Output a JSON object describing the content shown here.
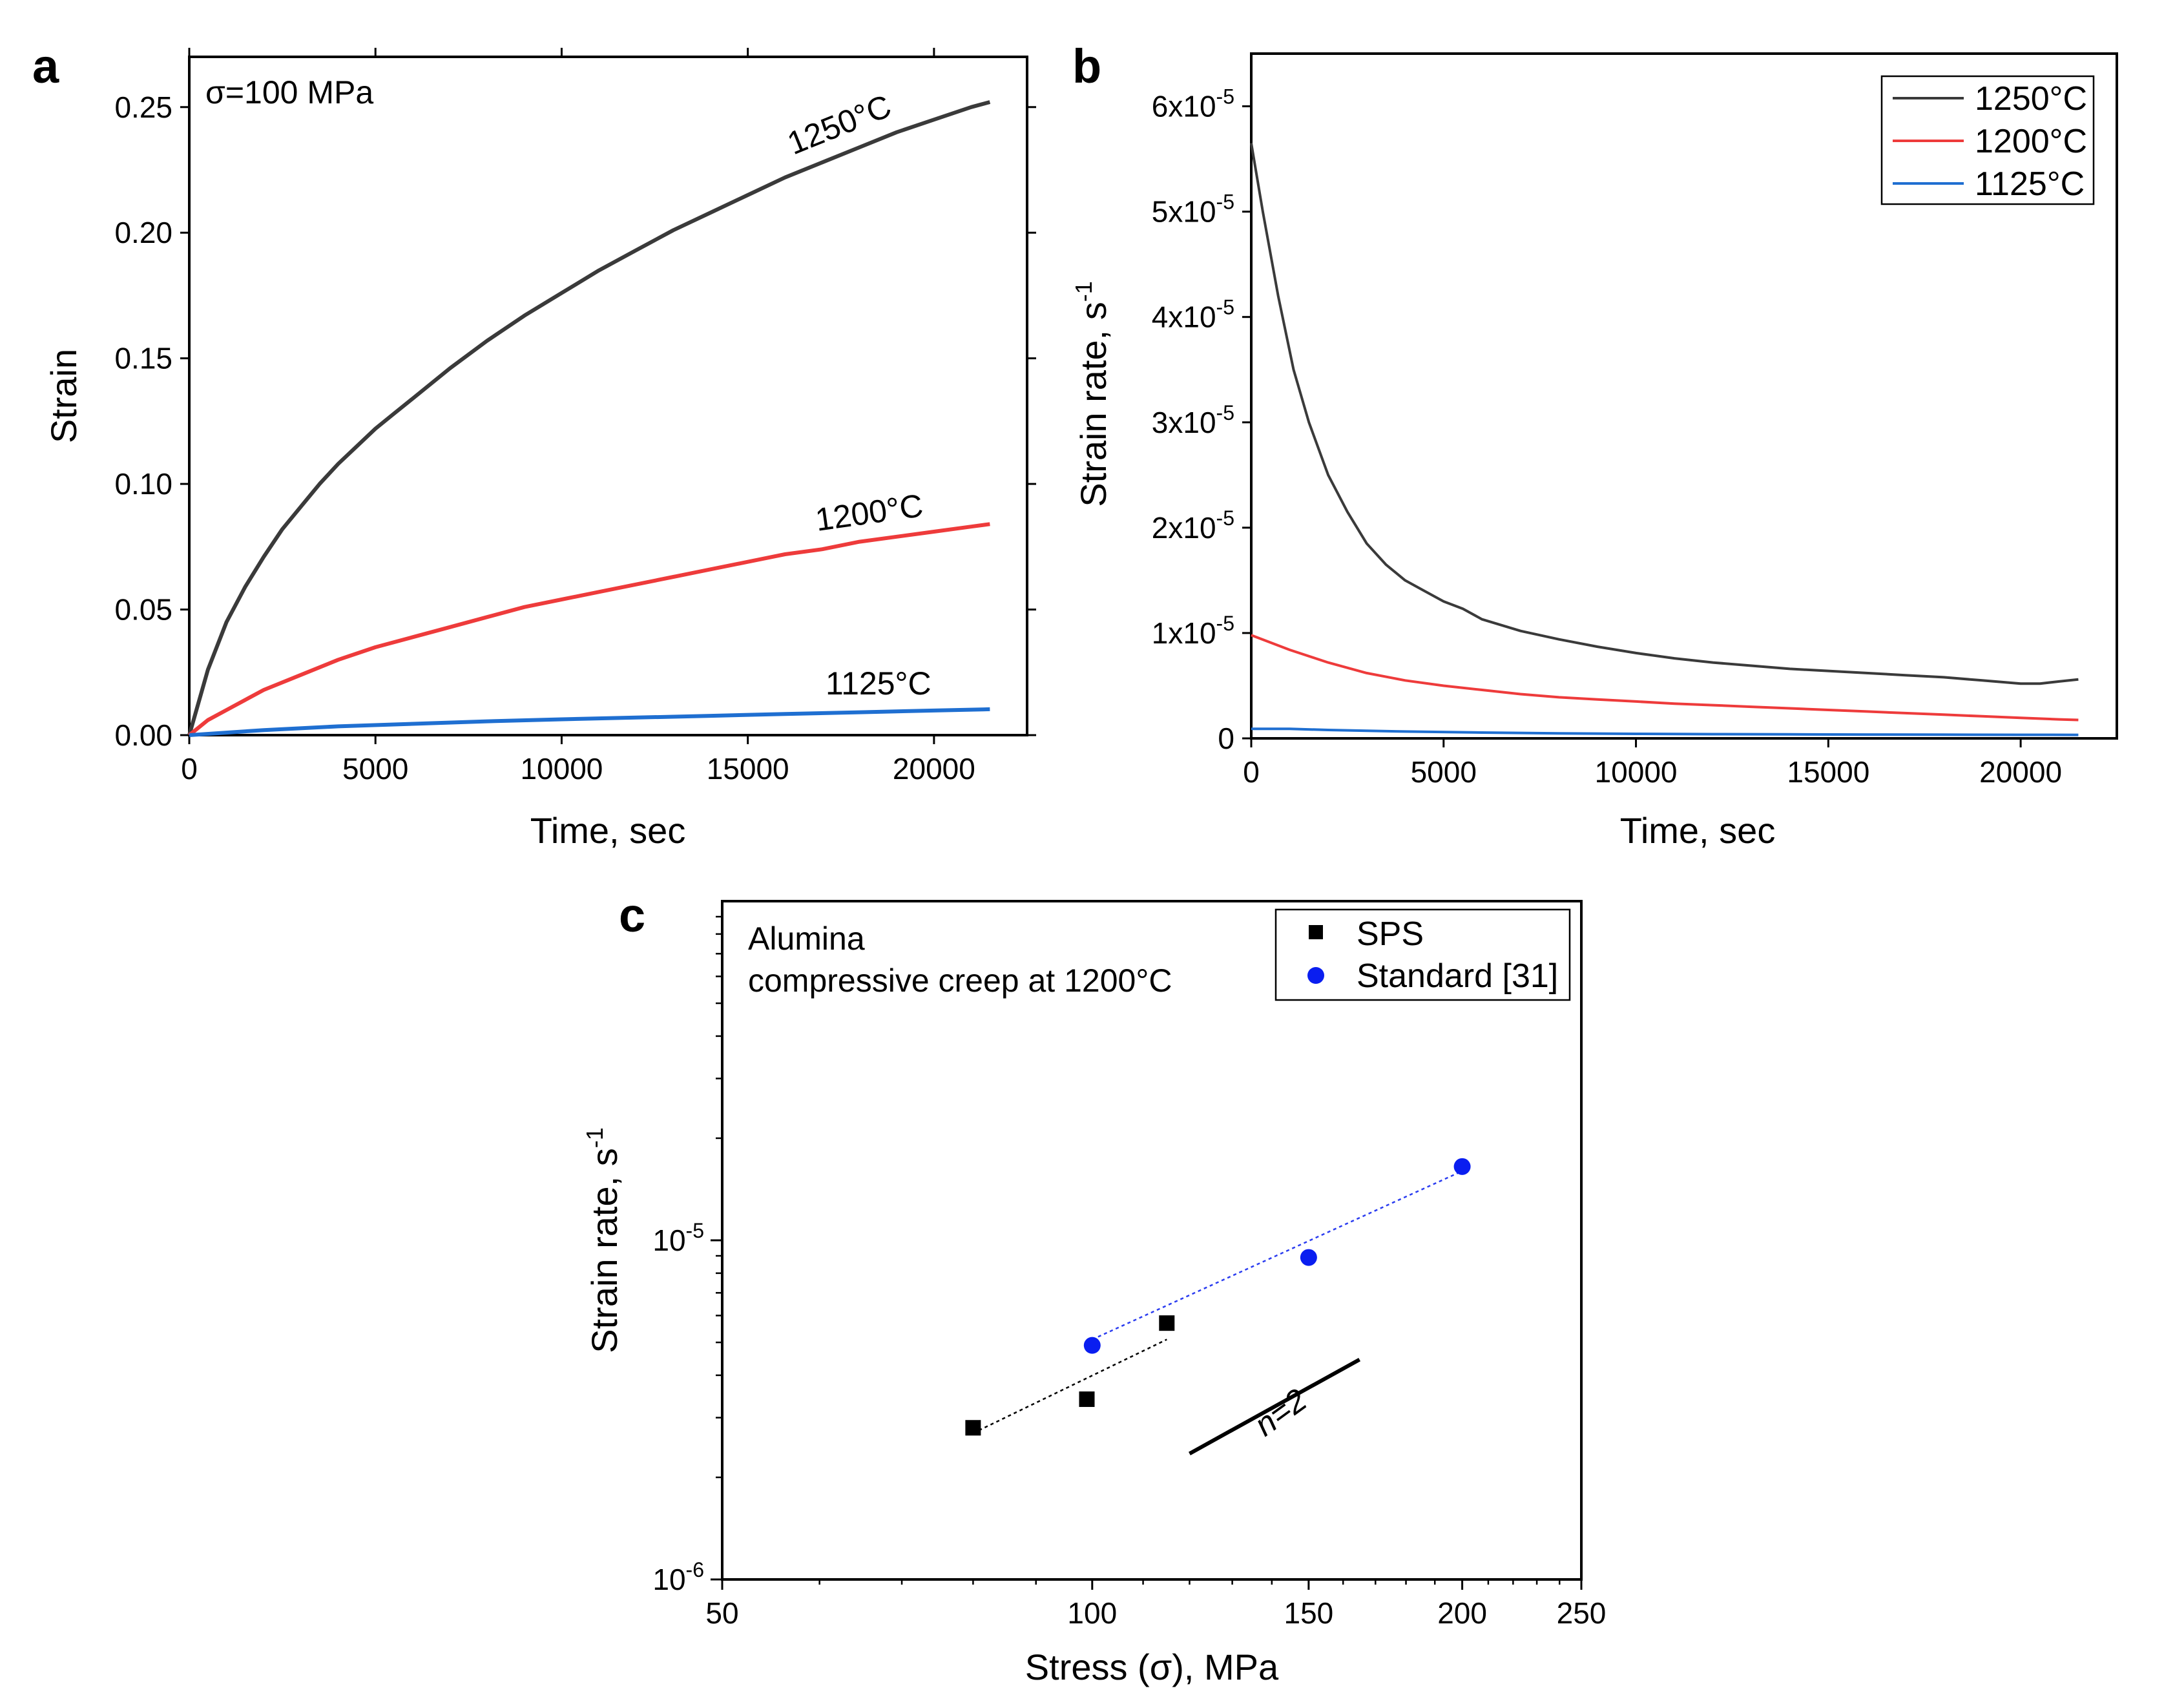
{
  "chart_data": [
    {
      "panel": "a",
      "type": "line",
      "annotation": "σ=100 MPa",
      "xlabel": "Time, sec",
      "ylabel": "Strain",
      "xlim": [
        0,
        22500
      ],
      "ylim": [
        0,
        0.27
      ],
      "xticks": [
        "0",
        "5000",
        "10000",
        "15000",
        "20000"
      ],
      "yticks": [
        "0.00",
        "0.05",
        "0.10",
        "0.15",
        "0.20",
        "0.25"
      ],
      "series": [
        {
          "name": "1250°C",
          "color": "#3a3a3a",
          "x": [
            0,
            500,
            1000,
            1500,
            2000,
            2500,
            3000,
            3500,
            4000,
            4500,
            5000,
            5500,
            6000,
            7000,
            8000,
            9000,
            10000,
            11000,
            12000,
            13000,
            14000,
            15000,
            16000,
            17000,
            18000,
            19000,
            20000,
            21000,
            21500
          ],
          "y": [
            0,
            0.026,
            0.045,
            0.059,
            0.071,
            0.082,
            0.091,
            0.1,
            0.108,
            0.115,
            0.122,
            0.128,
            0.134,
            0.146,
            0.157,
            0.167,
            0.176,
            0.185,
            0.193,
            0.201,
            0.208,
            0.215,
            0.222,
            0.228,
            0.234,
            0.24,
            0.245,
            0.25,
            0.252
          ]
        },
        {
          "name": "1200°C",
          "color": "#ee3b3b",
          "x": [
            0,
            500,
            1000,
            2000,
            3000,
            4000,
            5000,
            6000,
            7000,
            8000,
            9000,
            10000,
            11000,
            12000,
            13000,
            14000,
            15000,
            16000,
            17000,
            18000,
            19000,
            20000,
            21000,
            21500
          ],
          "y": [
            0,
            0.006,
            0.01,
            0.018,
            0.024,
            0.03,
            0.035,
            0.039,
            0.043,
            0.047,
            0.051,
            0.054,
            0.057,
            0.06,
            0.063,
            0.066,
            0.069,
            0.072,
            0.074,
            0.077,
            0.079,
            0.081,
            0.083,
            0.084
          ]
        },
        {
          "name": "1125°C",
          "color": "#1f6fd1",
          "x": [
            0,
            1000,
            2000,
            4000,
            6000,
            8000,
            10000,
            12000,
            14000,
            16000,
            18000,
            20000,
            21500
          ],
          "y": [
            0,
            0.001,
            0.002,
            0.0035,
            0.0045,
            0.0055,
            0.0063,
            0.007,
            0.0077,
            0.0084,
            0.0091,
            0.0098,
            0.0103
          ]
        }
      ]
    },
    {
      "panel": "b",
      "type": "line",
      "xlabel": "Time, sec",
      "ylabel_main": "Strain rate, s",
      "ylabel_sup": "-1",
      "xlim": [
        0,
        22500
      ],
      "ylim": [
        0,
        6.5e-05
      ],
      "xticks": [
        "0",
        "5000",
        "10000",
        "15000",
        "20000"
      ],
      "ytick_zero": "0",
      "ytick_mantissas": [
        "1x10",
        "2x10",
        "3x10",
        "4x10",
        "5x10",
        "6x10"
      ],
      "ytick_exp": "-5",
      "legend_position": "top-right",
      "series": [
        {
          "name": "1250°C",
          "color": "#3a3a3a",
          "x": [
            0,
            300,
            700,
            1100,
            1500,
            2000,
            2500,
            3000,
            3500,
            4000,
            4500,
            5000,
            5500,
            6000,
            7000,
            8000,
            9000,
            10000,
            11000,
            12000,
            13000,
            14000,
            15000,
            16000,
            17000,
            18000,
            19000,
            20000,
            20500,
            21000,
            21500
          ],
          "y": [
            5.65e-05,
            5e-05,
            4.2e-05,
            3.5e-05,
            3e-05,
            2.5e-05,
            2.15e-05,
            1.85e-05,
            1.65e-05,
            1.5e-05,
            1.4e-05,
            1.3e-05,
            1.23e-05,
            1.13e-05,
            1.02e-05,
            9.4e-06,
            8.7e-06,
            8.1e-06,
            7.6e-06,
            7.2e-06,
            6.9e-06,
            6.6e-06,
            6.4e-06,
            6.2e-06,
            6e-06,
            5.8e-06,
            5.5e-06,
            5.2e-06,
            5.2e-06,
            5.4e-06,
            5.6e-06
          ]
        },
        {
          "name": "1200°C",
          "color": "#ee3b3b",
          "x": [
            0,
            1000,
            2000,
            3000,
            4000,
            5000,
            6000,
            7000,
            8000,
            9000,
            10000,
            11000,
            12000,
            13000,
            14000,
            15000,
            16000,
            17000,
            18000,
            19000,
            20000,
            21000,
            21500
          ],
          "y": [
            9.8e-06,
            8.4e-06,
            7.2e-06,
            6.2e-06,
            5.5e-06,
            5e-06,
            4.6e-06,
            4.2e-06,
            3.9e-06,
            3.7e-06,
            3.5e-06,
            3.3e-06,
            3.15e-06,
            3e-06,
            2.85e-06,
            2.7e-06,
            2.55e-06,
            2.4e-06,
            2.25e-06,
            2.1e-06,
            1.95e-06,
            1.8e-06,
            1.75e-06
          ]
        },
        {
          "name": "1125°C",
          "color": "#1f6fd1",
          "x": [
            0,
            1000,
            2000,
            4000,
            6000,
            8000,
            10000,
            12000,
            14000,
            16000,
            18000,
            20000,
            21500
          ],
          "y": [
            9e-07,
            9e-07,
            8e-07,
            6.5e-07,
            5.5e-07,
            4.8e-07,
            4.3e-07,
            4e-07,
            3.8e-07,
            3.6e-07,
            3.5e-07,
            3.4e-07,
            3.3e-07
          ]
        }
      ]
    },
    {
      "panel": "c",
      "type": "scatter",
      "annotation_line1": "Alumina",
      "annotation_line2": "compressive creep at 1200°C",
      "xlabel": "Stress (σ), MPa",
      "ylabel_main": "Strain rate, s",
      "ylabel_sup": "-1",
      "xscale": "log",
      "yscale": "log",
      "xlim": [
        50,
        250
      ],
      "ylim": [
        1e-06,
        0.0001
      ],
      "xticks": [
        {
          "value": 50,
          "label": "50"
        },
        {
          "value": 100,
          "label": "100"
        },
        {
          "value": 150,
          "label": "150"
        },
        {
          "value": 200,
          "label": "200"
        },
        {
          "value": 250,
          "label": "250"
        }
      ],
      "ytick_base": "10",
      "yticks": [
        {
          "value": 1e-06,
          "exp": "-6"
        },
        {
          "value": 1e-05,
          "exp": "-5"
        }
      ],
      "slope_label": "n=2",
      "slope_segment": {
        "x": [
          120,
          165
        ],
        "y": [
          2.35e-06,
          4.45e-06
        ]
      },
      "legend_position": "top-right",
      "series": [
        {
          "name": "SPS",
          "marker": "square",
          "color": "#000000",
          "x": [
            80,
            99,
            115
          ],
          "y": [
            2.8e-06,
            3.4e-06,
            5.7e-06
          ],
          "fit": {
            "x": [
              80,
              115
            ],
            "y": [
              2.7e-06,
              5.1e-06
            ],
            "color": "#000000"
          }
        },
        {
          "name": "Standard [31]",
          "marker": "circle",
          "color": "#0a1ef0",
          "x": [
            100,
            150,
            200
          ],
          "y": [
            4.9e-06,
            8.9e-06,
            1.65e-05
          ],
          "fit": {
            "x": [
              100,
              200
            ],
            "y": [
              5.1e-06,
              1.6e-05
            ],
            "color": "#2a3cf0"
          }
        }
      ]
    }
  ]
}
